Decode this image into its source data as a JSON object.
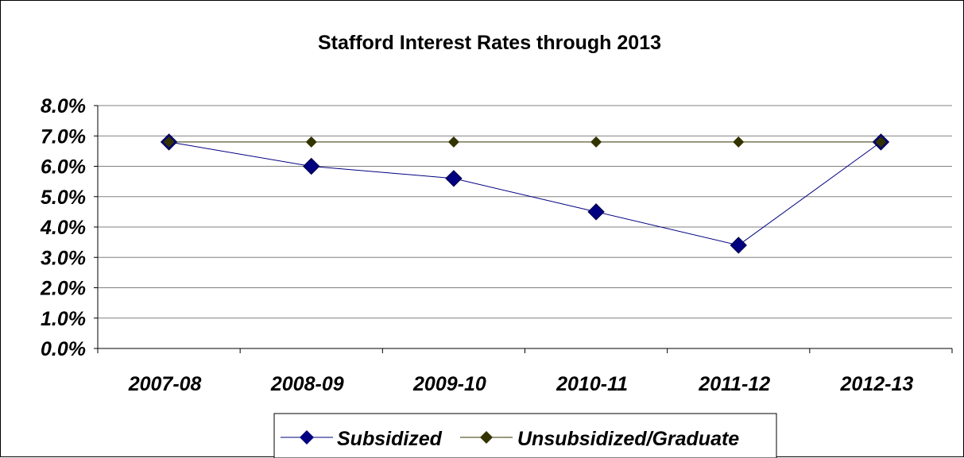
{
  "chart_data": {
    "type": "line",
    "title": "Stafford Interest Rates through 2013",
    "xlabel": "",
    "ylabel": "",
    "categories": [
      "2007-08",
      "2008-09",
      "2009-10",
      "2010-11",
      "2011-12",
      "2012-13"
    ],
    "yticks": [
      "0.0%",
      "1.0%",
      "2.0%",
      "3.0%",
      "4.0%",
      "5.0%",
      "6.0%",
      "7.0%",
      "8.0%"
    ],
    "ylim": [
      0,
      8
    ],
    "grid": true,
    "legend_position": "bottom",
    "series": [
      {
        "name": "Subsidized",
        "values": [
          6.8,
          6.0,
          5.6,
          4.5,
          3.4,
          6.8
        ],
        "line_color": "#000080",
        "marker_color": "#000080",
        "marker": "diamond-large"
      },
      {
        "name": "Unsubsidized/Graduate",
        "values": [
          6.8,
          6.8,
          6.8,
          6.8,
          6.8,
          6.8
        ],
        "line_color": "#333300",
        "marker_color": "#333300",
        "marker": "diamond-small"
      }
    ]
  }
}
